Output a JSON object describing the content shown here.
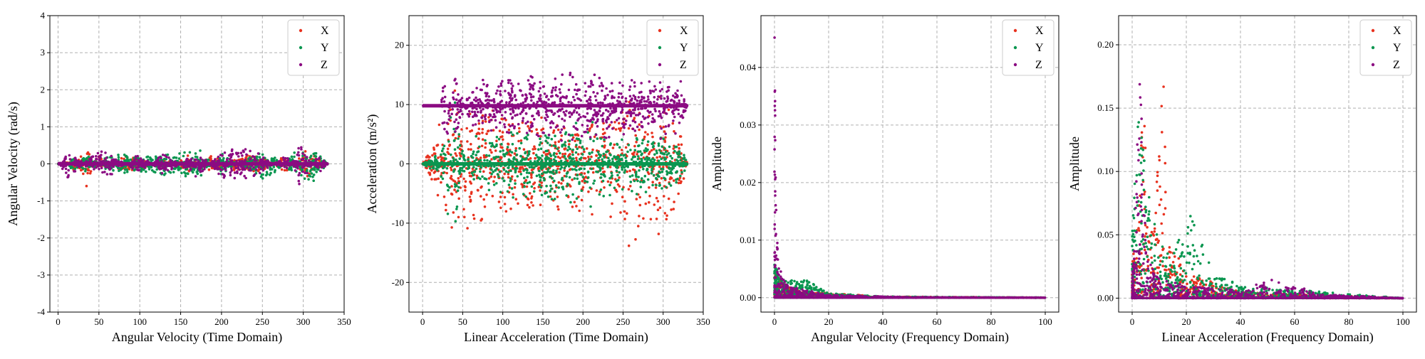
{
  "colors": {
    "X": "#e8321f",
    "Y": "#0a9650",
    "Z": "#8b0b82"
  },
  "chart_data": [
    {
      "type": "scatter",
      "title": "",
      "xlabel": "Angular Velocity (Time Domain)",
      "ylabel": "Angular Velocity (rad/s)",
      "xlim": [
        -10,
        350
      ],
      "ylim": [
        -4,
        4
      ],
      "xticks": [
        0,
        50,
        100,
        150,
        200,
        250,
        300,
        350
      ],
      "yticks": [
        -4,
        -3,
        -2,
        -1,
        0,
        1,
        2,
        3,
        4
      ],
      "grid": true,
      "legend_position": "top-right",
      "series": [
        {
          "name": "X",
          "x": [
            0,
            10,
            20,
            30,
            35,
            50,
            80,
            100,
            130,
            160,
            190,
            220,
            250,
            280,
            300,
            320,
            330
          ],
          "y": [
            0,
            0.05,
            0.2,
            0.3,
            0.65,
            -0.3,
            0.25,
            0.2,
            -0.2,
            0.25,
            -0.3,
            0.3,
            0.2,
            -0.3,
            0.4,
            0.2,
            0
          ]
        },
        {
          "name": "Y",
          "x": [
            0,
            10,
            20,
            35,
            60,
            100,
            150,
            170,
            200,
            255,
            290,
            302,
            320,
            330
          ],
          "y": [
            0,
            -0.05,
            0.3,
            -0.4,
            0.25,
            0.3,
            0.35,
            0.5,
            -0.3,
            0.55,
            -0.4,
            0.85,
            0.3,
            0
          ]
        },
        {
          "name": "Z",
          "x": [
            0,
            10,
            13,
            20,
            40,
            60,
            100,
            130,
            170,
            200,
            240,
            280,
            295,
            320,
            330
          ],
          "y": [
            0,
            -0.3,
            -0.7,
            0.35,
            -0.3,
            -0.4,
            0.3,
            -0.35,
            0.4,
            -0.4,
            -0.5,
            0.3,
            -0.65,
            0.3,
            0
          ]
        }
      ]
    },
    {
      "type": "scatter",
      "title": "",
      "xlabel": "Linear Acceleration (Time Domain)",
      "ylabel": "Acceleration (m/s²)",
      "xlim": [
        -17,
        350
      ],
      "ylim": [
        -25,
        25
      ],
      "xticks": [
        0,
        50,
        100,
        150,
        200,
        250,
        300,
        350
      ],
      "yticks": [
        -20,
        -10,
        0,
        10,
        20
      ],
      "grid": true,
      "legend_position": "top-right",
      "series": [
        {
          "name": "X",
          "x": [
            0,
            30,
            40,
            55,
            90,
            120,
            150,
            200,
            240,
            255,
            280,
            300,
            320,
            330
          ],
          "y": [
            0,
            -10,
            -14,
            -12,
            -10,
            -8,
            -9,
            -8,
            -10,
            -18,
            -11,
            -14,
            -8,
            0
          ]
        },
        {
          "name": "Y",
          "x": [
            0,
            20,
            30,
            34,
            40,
            60,
            100,
            150,
            200,
            250,
            300,
            320,
            330
          ],
          "y": [
            0,
            2,
            4,
            19,
            -13,
            5,
            6,
            7,
            8,
            5,
            6,
            5,
            0
          ]
        },
        {
          "name": "Z",
          "x": [
            0,
            20,
            30,
            40,
            60,
            100,
            150,
            200,
            250,
            280,
            300,
            320,
            330
          ],
          "y": [
            9.8,
            9.8,
            17,
            3,
            14,
            15,
            16,
            17,
            15,
            14,
            16,
            15,
            9.8
          ]
        }
      ]
    },
    {
      "type": "scatter",
      "title": "",
      "xlabel": "Angular Velocity (Frequency Domain)",
      "ylabel": "Amplitude",
      "xlim": [
        -5,
        105
      ],
      "ylim": [
        -0.0025,
        0.049
      ],
      "xticks": [
        0,
        20,
        40,
        60,
        80,
        100
      ],
      "yticks": [
        0.0,
        0.01,
        0.02,
        0.03,
        0.04
      ],
      "ytick_labels": [
        "0.00",
        "0.01",
        "0.02",
        "0.03",
        "0.04"
      ],
      "grid": true,
      "legend_position": "top-right",
      "series": [
        {
          "name": "X",
          "x": [
            0,
            2,
            5,
            10,
            20,
            40,
            100
          ],
          "y": [
            0.005,
            0.003,
            0.002,
            0.001,
            0.0008,
            0.0002,
            0
          ]
        },
        {
          "name": "Y",
          "x": [
            0,
            2,
            5,
            12,
            20,
            40,
            100
          ],
          "y": [
            0.006,
            0.004,
            0.003,
            0.003,
            0.0008,
            0.0002,
            0
          ]
        },
        {
          "name": "Z",
          "x": [
            0,
            0.2,
            0.5,
            1,
            2,
            5,
            20,
            50,
            100
          ],
          "y": [
            0.047,
            0.04,
            0.02,
            0.01,
            0.005,
            0.002,
            0.0005,
            0.0001,
            0
          ]
        }
      ]
    },
    {
      "type": "scatter",
      "title": "",
      "xlabel": "Linear Acceleration (Frequency Domain)",
      "ylabel": "Amplitude",
      "xlim": [
        -5,
        105
      ],
      "ylim": [
        -0.011,
        0.223
      ],
      "xticks": [
        0,
        20,
        40,
        60,
        80,
        100
      ],
      "yticks": [
        0.0,
        0.05,
        0.1,
        0.15,
        0.2
      ],
      "ytick_labels": [
        "0.00",
        "0.05",
        "0.10",
        "0.15",
        "0.20"
      ],
      "grid": true,
      "legend_position": "top-right",
      "series": [
        {
          "name": "X",
          "x": [
            0,
            2,
            4,
            6,
            8,
            12,
            13,
            20,
            40,
            100
          ],
          "y": [
            0.03,
            0.06,
            0.18,
            0.05,
            0.06,
            0.19,
            0.05,
            0.02,
            0.005,
            0
          ]
        },
        {
          "name": "Y",
          "x": [
            0,
            1,
            2,
            4,
            8,
            12,
            16,
            20,
            22,
            30,
            40,
            100
          ],
          "y": [
            0.05,
            0.1,
            0.15,
            0.12,
            0.06,
            0.04,
            0.045,
            0.05,
            0.07,
            0.02,
            0.01,
            0
          ]
        },
        {
          "name": "Z",
          "x": [
            0,
            1,
            3,
            4,
            6,
            10,
            20,
            40,
            52,
            55,
            63,
            70,
            100
          ],
          "y": [
            0.02,
            0.05,
            0.214,
            0.08,
            0.03,
            0.015,
            0.01,
            0.006,
            0.018,
            0.01,
            0.008,
            0.003,
            0
          ]
        }
      ]
    }
  ]
}
